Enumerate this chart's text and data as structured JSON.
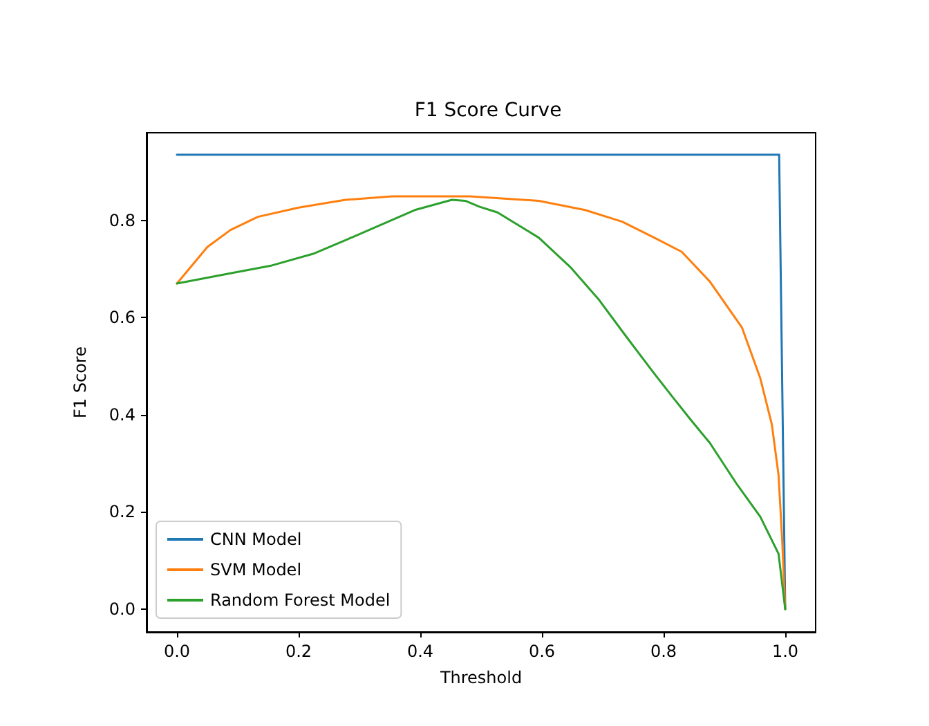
{
  "chart_data": {
    "type": "line",
    "title": "F1 Score Curve",
    "xlabel": "Threshold",
    "ylabel": "F1 Score",
    "xlim": [
      -0.05,
      1.05
    ],
    "ylim": [
      -0.047,
      0.98
    ],
    "xticks": [
      {
        "value": 0,
        "label": "0.0"
      },
      {
        "value": 0.2,
        "label": "0.2"
      },
      {
        "value": 0.4,
        "label": "0.4"
      },
      {
        "value": 0.6,
        "label": "0.6"
      },
      {
        "value": 0.8,
        "label": "0.8"
      },
      {
        "value": 1,
        "label": "1.0"
      }
    ],
    "yticks": [
      {
        "value": 0,
        "label": "0.0"
      },
      {
        "value": 0.2,
        "label": "0.2"
      },
      {
        "value": 0.4,
        "label": "0.4"
      },
      {
        "value": 0.6,
        "label": "0.6"
      },
      {
        "value": 0.8,
        "label": "0.8"
      }
    ],
    "grid": false,
    "legend": "bottom left",
    "marker": "none",
    "line_style": "solid",
    "series": [
      {
        "name": "CNN Model",
        "color": "#1f77b4",
        "x": [
          0,
          0.99,
          1.0
        ],
        "values": [
          0.935,
          0.935,
          0
        ]
      },
      {
        "name": "SVM Model",
        "color": "#ff7f0e",
        "x": [
          0,
          0.05,
          0.088,
          0.133,
          0.2,
          0.277,
          0.353,
          0.429,
          0.482,
          0.595,
          0.671,
          0.732,
          0.785,
          0.83,
          0.876,
          0.929,
          0.959,
          0.978,
          0.989,
          0.995,
          1.0
        ],
        "values": [
          0.67,
          0.745,
          0.78,
          0.807,
          0.826,
          0.842,
          0.849,
          0.849,
          0.849,
          0.84,
          0.821,
          0.797,
          0.764,
          0.735,
          0.674,
          0.579,
          0.475,
          0.38,
          0.276,
          0.142,
          0
        ]
      },
      {
        "name": "Random Forest Model",
        "color": "#2ca02c",
        "x": [
          0,
          0.088,
          0.156,
          0.224,
          0.277,
          0.338,
          0.391,
          0.452,
          0.474,
          0.497,
          0.527,
          0.595,
          0.648,
          0.694,
          0.739,
          0.785,
          0.815,
          0.845,
          0.876,
          0.921,
          0.959,
          0.989,
          1.0
        ],
        "values": [
          0.67,
          0.691,
          0.707,
          0.731,
          0.759,
          0.792,
          0.821,
          0.842,
          0.84,
          0.828,
          0.816,
          0.764,
          0.702,
          0.636,
          0.56,
          0.484,
          0.436,
          0.389,
          0.342,
          0.256,
          0.19,
          0.114,
          0
        ]
      }
    ]
  }
}
